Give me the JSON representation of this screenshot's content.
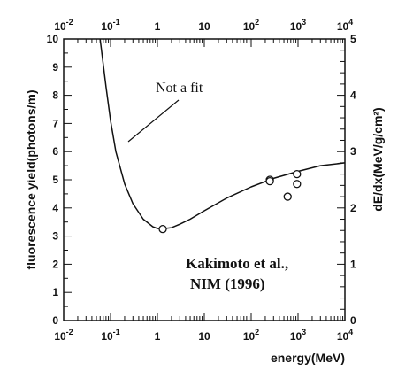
{
  "chart_data": {
    "type": "line",
    "title": "",
    "xlabel": "energy(MeV)",
    "ylabel": "fluorescence yield(photons/m)",
    "y2label": "dE/dx(MeV/g/cm²)",
    "x_scale": "log",
    "xlim": [
      0.01,
      10000
    ],
    "ylim": [
      0,
      10
    ],
    "y2lim": [
      0,
      5
    ],
    "x_ticks": [
      {
        "base": "10",
        "exp": "-2"
      },
      {
        "base": "10",
        "exp": "-1"
      },
      {
        "base": "1",
        "exp": ""
      },
      {
        "base": "10",
        "exp": ""
      },
      {
        "base": "10",
        "exp": "2"
      },
      {
        "base": "10",
        "exp": "3"
      },
      {
        "base": "10",
        "exp": "4"
      }
    ],
    "y_ticks": [
      "0",
      "1",
      "2",
      "3",
      "4",
      "5",
      "6",
      "7",
      "8",
      "9",
      "10"
    ],
    "y2_ticks": [
      "0",
      "1",
      "2",
      "3",
      "4",
      "5"
    ],
    "grid": false,
    "series": [
      {
        "style": "curve",
        "x": [
          0.06,
          0.08,
          0.1,
          0.13,
          0.2,
          0.3,
          0.5,
          0.8,
          1.0,
          1.3,
          2,
          3,
          5,
          10,
          30,
          100,
          300,
          1000,
          3000,
          10000
        ],
        "y": [
          10.0,
          8.3,
          7.1,
          6.0,
          4.85,
          4.15,
          3.6,
          3.33,
          3.27,
          3.26,
          3.3,
          3.42,
          3.6,
          3.9,
          4.35,
          4.75,
          5.05,
          5.3,
          5.5,
          5.6
        ]
      },
      {
        "style": "points",
        "x": [
          1.3,
          250,
          250,
          600,
          950,
          950
        ],
        "y": [
          3.25,
          5.0,
          4.95,
          4.4,
          5.2,
          4.85
        ]
      }
    ],
    "annotations": [
      {
        "text": "Not a fit"
      },
      {
        "text": "Kakimoto et al.,"
      },
      {
        "text": "NIM (1996)"
      }
    ]
  }
}
